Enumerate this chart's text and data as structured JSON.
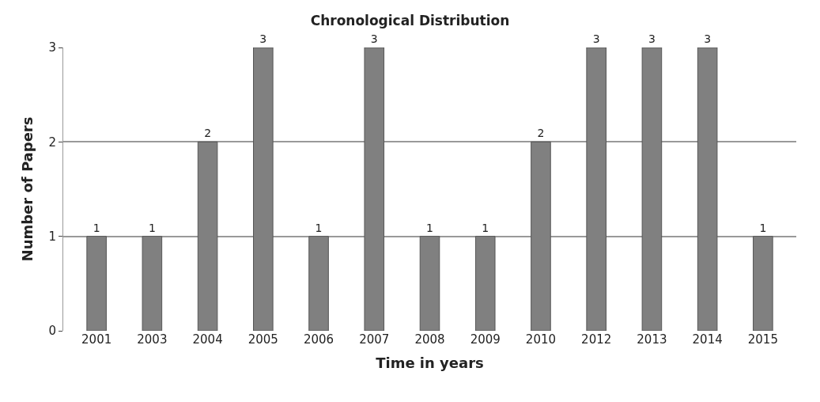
{
  "chart_data": {
    "type": "bar",
    "title": "Chronological Distribution",
    "xlabel": "Time in years",
    "ylabel": "Number of Papers",
    "categories": [
      "2001",
      "2003",
      "2004",
      "2005",
      "2006",
      "2007",
      "2008",
      "2009",
      "2010",
      "2012",
      "2013",
      "2014",
      "2015"
    ],
    "values": [
      1,
      1,
      2,
      3,
      1,
      3,
      1,
      1,
      2,
      3,
      3,
      3,
      1
    ],
    "color": "#808080",
    "ylim": [
      0,
      3
    ],
    "yticks": [
      0,
      1,
      2,
      3
    ],
    "grid": "y",
    "data_labels": true
  }
}
